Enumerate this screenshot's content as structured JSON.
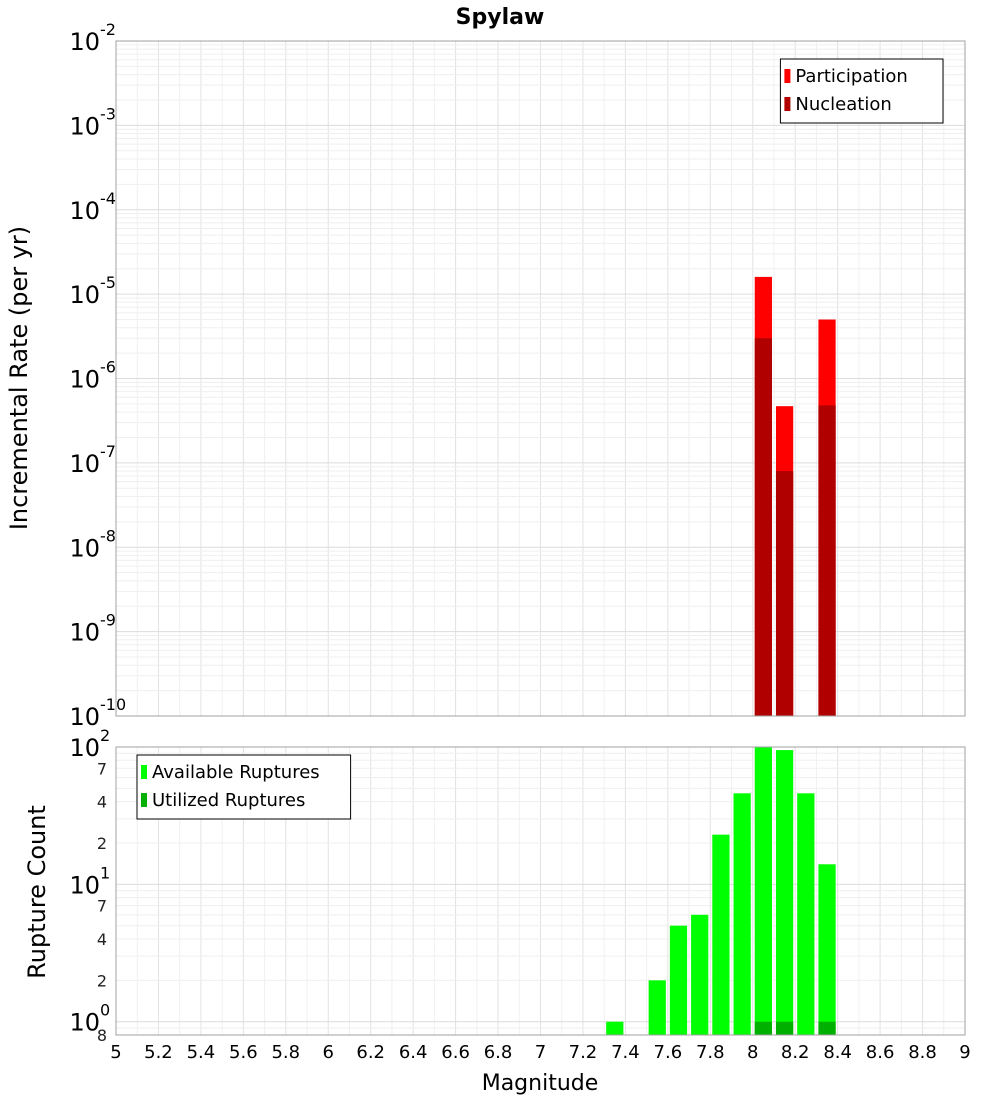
{
  "chart_data": {
    "title": "Spylaw",
    "xlabel": "Magnitude",
    "x_ticks": [
      "5",
      "5.2",
      "5.4",
      "5.6",
      "5.8",
      "6",
      "6.2",
      "6.4",
      "6.6",
      "6.8",
      "7",
      "7.2",
      "7.4",
      "7.6",
      "7.8",
      "8",
      "8.2",
      "8.4",
      "8.6",
      "8.8",
      "9"
    ],
    "xlim": [
      5,
      9
    ],
    "panels": [
      {
        "type": "bar",
        "ylabel": "Incremental Rate (per yr)",
        "yscale": "log",
        "ylim": [
          1e-10,
          0.01
        ],
        "major_ticks": [
          {
            "base": "10",
            "exp": "-10",
            "value": 1e-10
          },
          {
            "base": "10",
            "exp": "-9",
            "value": 1e-09
          },
          {
            "base": "10",
            "exp": "-8",
            "value": 1e-08
          },
          {
            "base": "10",
            "exp": "-7",
            "value": 1e-07
          },
          {
            "base": "10",
            "exp": "-6",
            "value": 1e-06
          },
          {
            "base": "10",
            "exp": "-5",
            "value": 1e-05
          },
          {
            "base": "10",
            "exp": "-4",
            "value": 0.0001
          },
          {
            "base": "10",
            "exp": "-3",
            "value": 0.001
          },
          {
            "base": "10",
            "exp": "-2",
            "value": 0.01
          }
        ],
        "legend_position": "top-right",
        "series": [
          {
            "name": "Participation",
            "color": "#ff0000",
            "x": [
              8.05,
              8.15,
              8.35
            ],
            "values": [
              1.6e-05,
              4.7e-07,
              5e-06
            ]
          },
          {
            "name": "Nucleation",
            "color": "#b00000",
            "x": [
              8.05,
              8.15,
              8.35
            ],
            "values": [
              3e-06,
              8e-08,
              4.8e-07
            ]
          }
        ]
      },
      {
        "type": "bar",
        "ylabel": "Rupture Count",
        "yscale": "log",
        "ylim": [
          0.8,
          100
        ],
        "major_ticks": [
          {
            "base": "10",
            "exp": "0",
            "value": 1
          },
          {
            "base": "10",
            "exp": "1",
            "value": 10
          },
          {
            "base": "10",
            "exp": "2",
            "value": 100
          }
        ],
        "minor_ticks": [
          {
            "label": "8",
            "value": 0.8
          },
          {
            "label": "2",
            "value": 2
          },
          {
            "label": "4",
            "value": 4
          },
          {
            "label": "7",
            "value": 7
          },
          {
            "label": "2",
            "value": 20
          },
          {
            "label": "4",
            "value": 40
          },
          {
            "label": "7",
            "value": 70
          }
        ],
        "legend_position": "top-left",
        "series": [
          {
            "name": "Available Ruptures",
            "color": "#00ff00",
            "x": [
              7.35,
              7.55,
              7.65,
              7.75,
              7.85,
              7.95,
              8.05,
              8.15,
              8.25,
              8.35
            ],
            "values": [
              1,
              2,
              5,
              6,
              23,
              46,
              100,
              95,
              46,
              14
            ]
          },
          {
            "name": "Utilized Ruptures",
            "color": "#00b000",
            "x": [
              8.05,
              8.15,
              8.35
            ],
            "values": [
              1,
              1,
              1
            ]
          }
        ]
      }
    ]
  }
}
